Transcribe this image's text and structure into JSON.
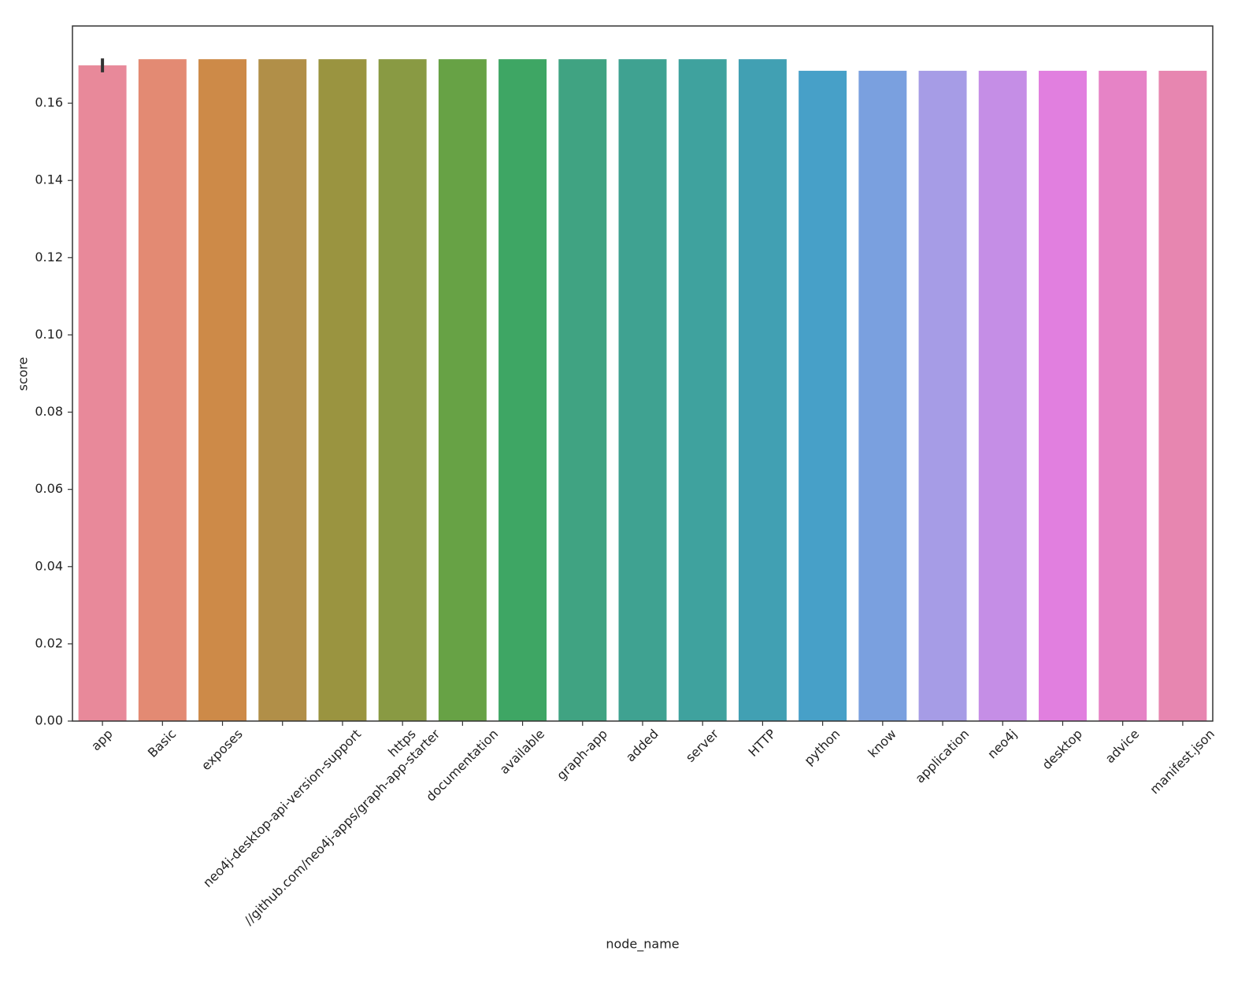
{
  "chart_data": {
    "type": "bar",
    "x_label": "node_name",
    "y_label": "score",
    "categories": [
      "app",
      "Basic",
      "exposes",
      "neo4j-desktop-api-version-support",
      "//github.com/neo4j-apps/graph-app-starter",
      "https",
      "documentation",
      "available",
      "graph-app",
      "added",
      "server",
      "HTTP",
      "python",
      "know",
      "application",
      "neo4j",
      "desktop",
      "advice",
      "manifest.json"
    ],
    "values": [
      0.1698,
      0.1714,
      0.1714,
      0.1714,
      0.1714,
      0.1714,
      0.1714,
      0.1714,
      0.1714,
      0.1714,
      0.1714,
      0.1714,
      0.1684,
      0.1684,
      0.1684,
      0.1684,
      0.1684,
      0.1684,
      0.1684
    ],
    "errors": [
      0.0018,
      null,
      null,
      null,
      null,
      null,
      null,
      null,
      null,
      null,
      null,
      null,
      null,
      null,
      null,
      null,
      null,
      null,
      null
    ],
    "colors": [
      "#e8899a",
      "#e38a73",
      "#cd8a48",
      "#b18f48",
      "#9a9440",
      "#899a43",
      "#67a245",
      "#3ea664",
      "#40a382",
      "#3fa291",
      "#3fa29e",
      "#41a0b3",
      "#47a0c8",
      "#7aa0df",
      "#a69ce6",
      "#c58ee6",
      "#e17fdf",
      "#e683c6",
      "#e786b0"
    ],
    "ylim": [
      0,
      0.18
    ],
    "yticks": [
      {
        "value": 0,
        "label": "0.00"
      },
      {
        "value": 0.02,
        "label": "0.02"
      },
      {
        "value": 0.04,
        "label": "0.04"
      },
      {
        "value": 0.06,
        "label": "0.06"
      },
      {
        "value": 0.08,
        "label": "0.08"
      },
      {
        "value": 0.1,
        "label": "0.10"
      },
      {
        "value": 0.12,
        "label": "0.12"
      },
      {
        "value": 0.14,
        "label": "0.14"
      },
      {
        "value": 0.16,
        "label": "0.16"
      }
    ],
    "grid": false
  }
}
